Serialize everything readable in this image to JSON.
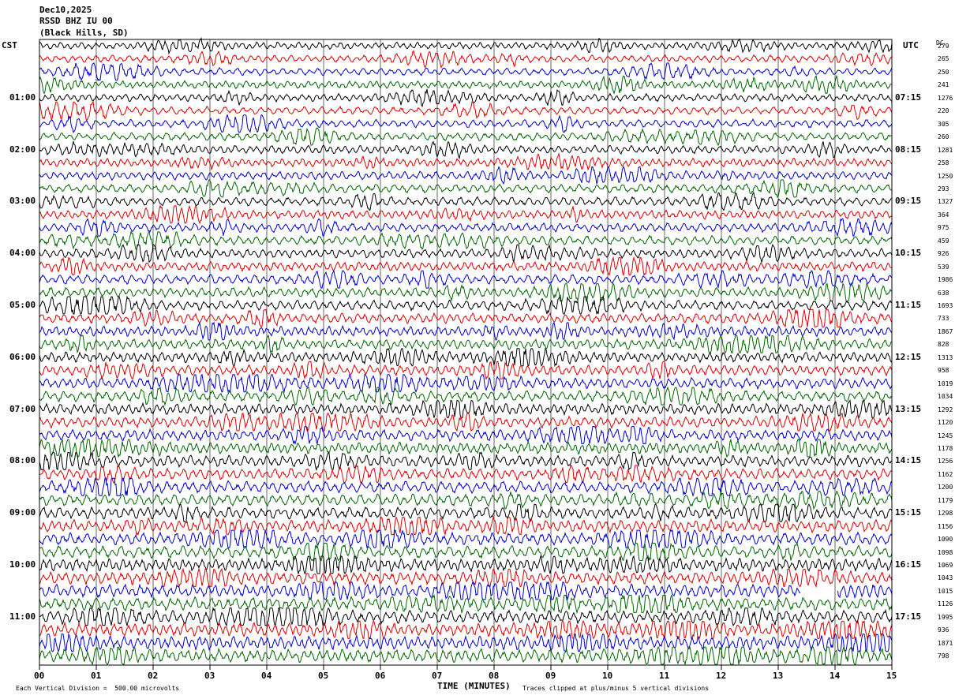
{
  "header": {
    "date": "Dec10,2025",
    "station": "RSSD BHZ IU 00",
    "location": "(Black Hills, SD)"
  },
  "left_zone_label": "CST",
  "right_zone_label": "UTC",
  "dc_label": "DC",
  "chart_data": {
    "type": "line",
    "title": "",
    "xlabel": "TIME (MINUTES)",
    "ylabel": "",
    "xlim": [
      0,
      15
    ],
    "x_ticks": [
      "00",
      "01",
      "02",
      "03",
      "04",
      "05",
      "06",
      "07",
      "08",
      "09",
      "10",
      "11",
      "12",
      "13",
      "14",
      "15"
    ],
    "trace_count": 48,
    "traces_per_hour": 4,
    "trace_colors": [
      "#000000",
      "#dd0000",
      "#0000cc",
      "#006600"
    ],
    "left_hour_labels": [
      "01:00",
      "02:00",
      "03:00",
      "04:00",
      "05:00",
      "06:00",
      "07:00",
      "08:00",
      "09:00",
      "10:00",
      "11:00"
    ],
    "left_label_trace_indices": [
      4,
      8,
      12,
      16,
      20,
      24,
      28,
      32,
      36,
      40,
      44
    ],
    "right_hour_labels": [
      "07:15",
      "08:15",
      "09:15",
      "10:15",
      "11:15",
      "12:15",
      "13:15",
      "14:15",
      "15:15",
      "16:15",
      "17:15"
    ],
    "right_label_trace_indices": [
      4,
      8,
      12,
      16,
      20,
      24,
      28,
      32,
      36,
      40,
      44
    ],
    "dc_offsets": [
      "279",
      "265",
      "250",
      "241",
      "1276",
      "220",
      "305",
      "260",
      "1281",
      "258",
      "1250",
      "293",
      "1327",
      "364",
      "975",
      "459",
      "926",
      "539",
      "1986",
      "638",
      "1693",
      "733",
      "1867",
      "828",
      "1313",
      "958",
      "1019",
      "1034",
      "1292",
      "1120",
      "1245",
      "1178",
      "1256",
      "1162",
      "1200",
      "1179",
      "1298",
      "1156",
      "1090",
      "1098",
      "1069",
      "1043",
      "1015",
      "1126",
      "1995",
      "936",
      "1871",
      "798"
    ]
  },
  "footer": {
    "vertical_division": "Each Vertical Division =  500.00 microvolts",
    "clip_note": "Traces clipped at plus/minus 5 vertical divisions"
  }
}
